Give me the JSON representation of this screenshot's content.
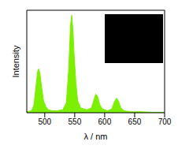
{
  "chart_data": {
    "type": "area",
    "x_label": "λ / nm",
    "y_label": "Intensity",
    "color": "#7cf000",
    "xlim": [
      470,
      700
    ],
    "xticks": [
      500,
      550,
      600,
      650,
      700
    ],
    "ylim": [
      0,
      1.05
    ],
    "yticks": [],
    "tick_labels": "x",
    "x": [
      470,
      478,
      482,
      485,
      488,
      490,
      492,
      495,
      498,
      502,
      506,
      512,
      520,
      530,
      536,
      540,
      543,
      545,
      547,
      549,
      552,
      555,
      560,
      570,
      578,
      582,
      585,
      588,
      592,
      596,
      605,
      612,
      616,
      620,
      623,
      627,
      632,
      645,
      660,
      680,
      700
    ],
    "values": [
      0.01,
      0.02,
      0.08,
      0.25,
      0.42,
      0.45,
      0.4,
      0.25,
      0.12,
      0.06,
      0.03,
      0.02,
      0.02,
      0.03,
      0.1,
      0.45,
      0.9,
      1.0,
      0.85,
      0.6,
      0.3,
      0.12,
      0.05,
      0.03,
      0.05,
      0.13,
      0.19,
      0.17,
      0.08,
      0.04,
      0.02,
      0.04,
      0.11,
      0.15,
      0.12,
      0.05,
      0.02,
      0.01,
      0.01,
      0.005,
      0.005
    ]
  }
}
